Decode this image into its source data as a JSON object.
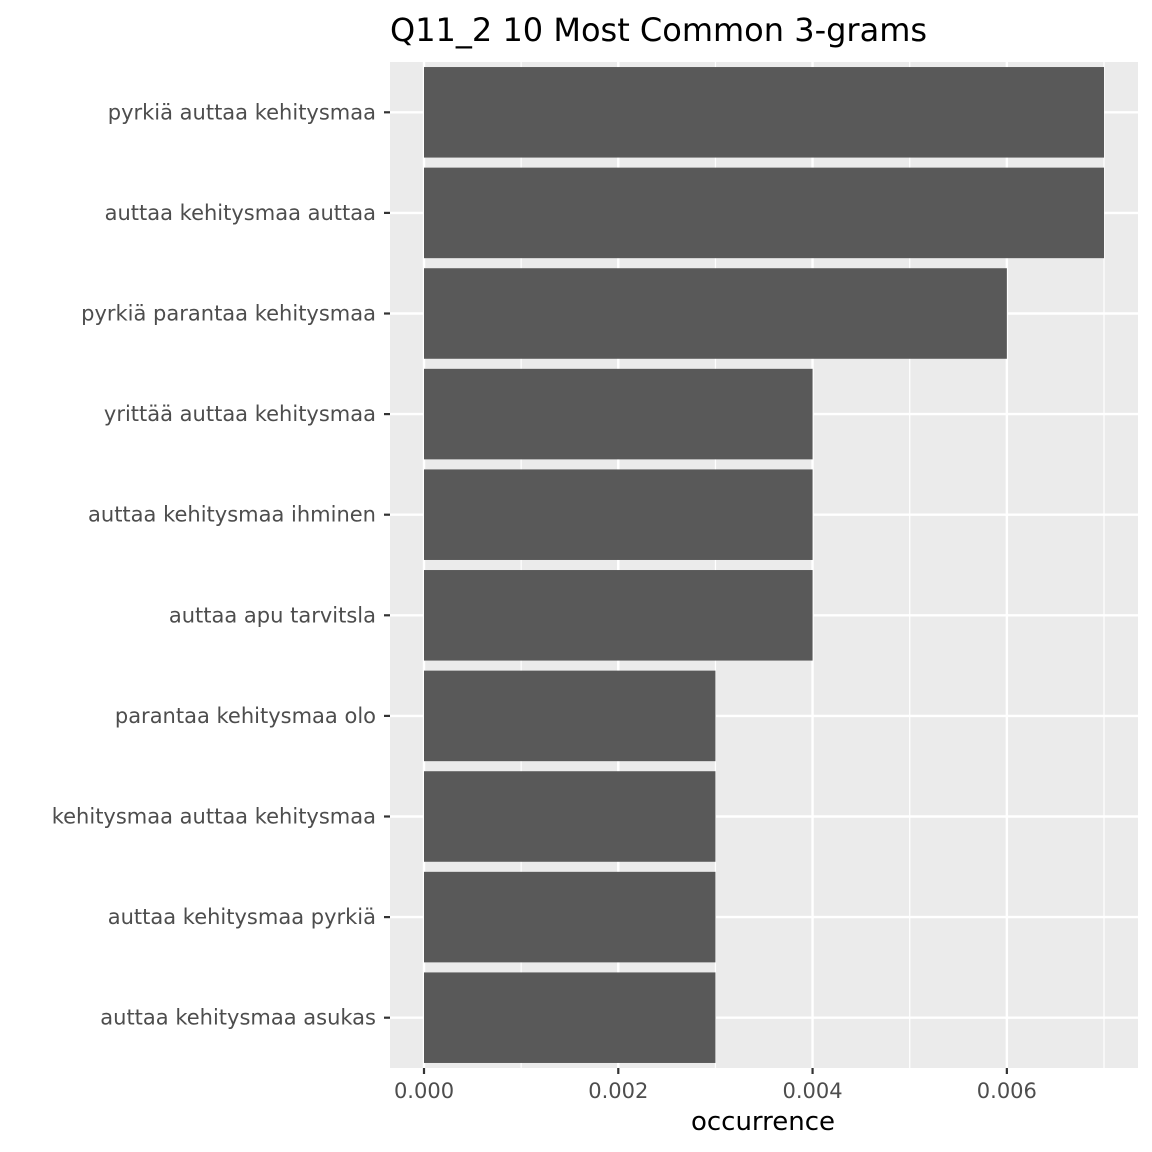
{
  "chart_data": {
    "type": "bar",
    "orientation": "horizontal",
    "title": "Q11_2 10 Most Common 3-grams",
    "xlabel": "occurrence",
    "ylabel": "",
    "categories": [
      "pyrkiä auttaa kehitysmaa",
      "auttaa kehitysmaa auttaa",
      "pyrkiä parantaa kehitysmaa",
      "yrittää auttaa kehitysmaa",
      "auttaa kehitysmaa ihminen",
      "auttaa apu tarvitsla",
      "parantaa kehitysmaa olo",
      "kehitysmaa auttaa kehitysmaa",
      "auttaa kehitysmaa pyrkiä",
      "auttaa kehitysmaa asukas"
    ],
    "values": [
      0.007,
      0.007,
      0.006,
      0.004,
      0.004,
      0.004,
      0.003,
      0.003,
      0.003,
      0.003
    ],
    "xlim": [
      -0.00035,
      0.00735
    ],
    "xticks": [
      0,
      0.002,
      0.004,
      0.006
    ],
    "xtick_labels": [
      "0.000",
      "0.002",
      "0.004",
      "0.006"
    ],
    "grid": true,
    "legend": "none",
    "colors": {
      "bar": "#595959",
      "panel": "#ebebeb",
      "grid": "#ffffff",
      "tick_label": "#4d4d4d",
      "tick_mark": "#333333"
    }
  }
}
